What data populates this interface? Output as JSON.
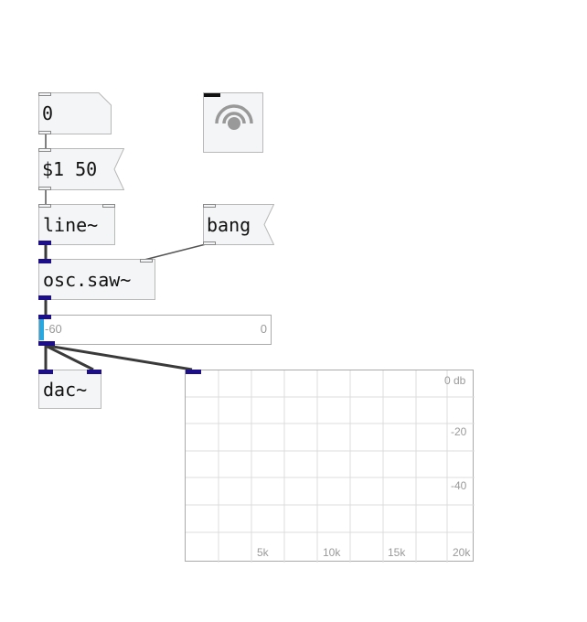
{
  "patch": {
    "number_box": {
      "value": "0"
    },
    "message_box": {
      "text": "$1 50"
    },
    "line_obj": {
      "text": "line~"
    },
    "bang_msg": {
      "text": "bang"
    },
    "osc_obj": {
      "text": "osc.saw~"
    },
    "dac_obj": {
      "text": "dac~"
    },
    "meter": {
      "min_label": "-60",
      "max_label": "0",
      "level": 0.01
    },
    "spectrum": {
      "y_labels": [
        "0 db",
        "-20",
        "-40"
      ],
      "x_labels": [
        "5k",
        "10k",
        "15k",
        "20k"
      ]
    },
    "icon": "speaker-dsp-icon",
    "colors": {
      "signal": "#1d0f8a",
      "meter_fill": "#29a8e0",
      "wire": "#3a3a3a"
    }
  }
}
